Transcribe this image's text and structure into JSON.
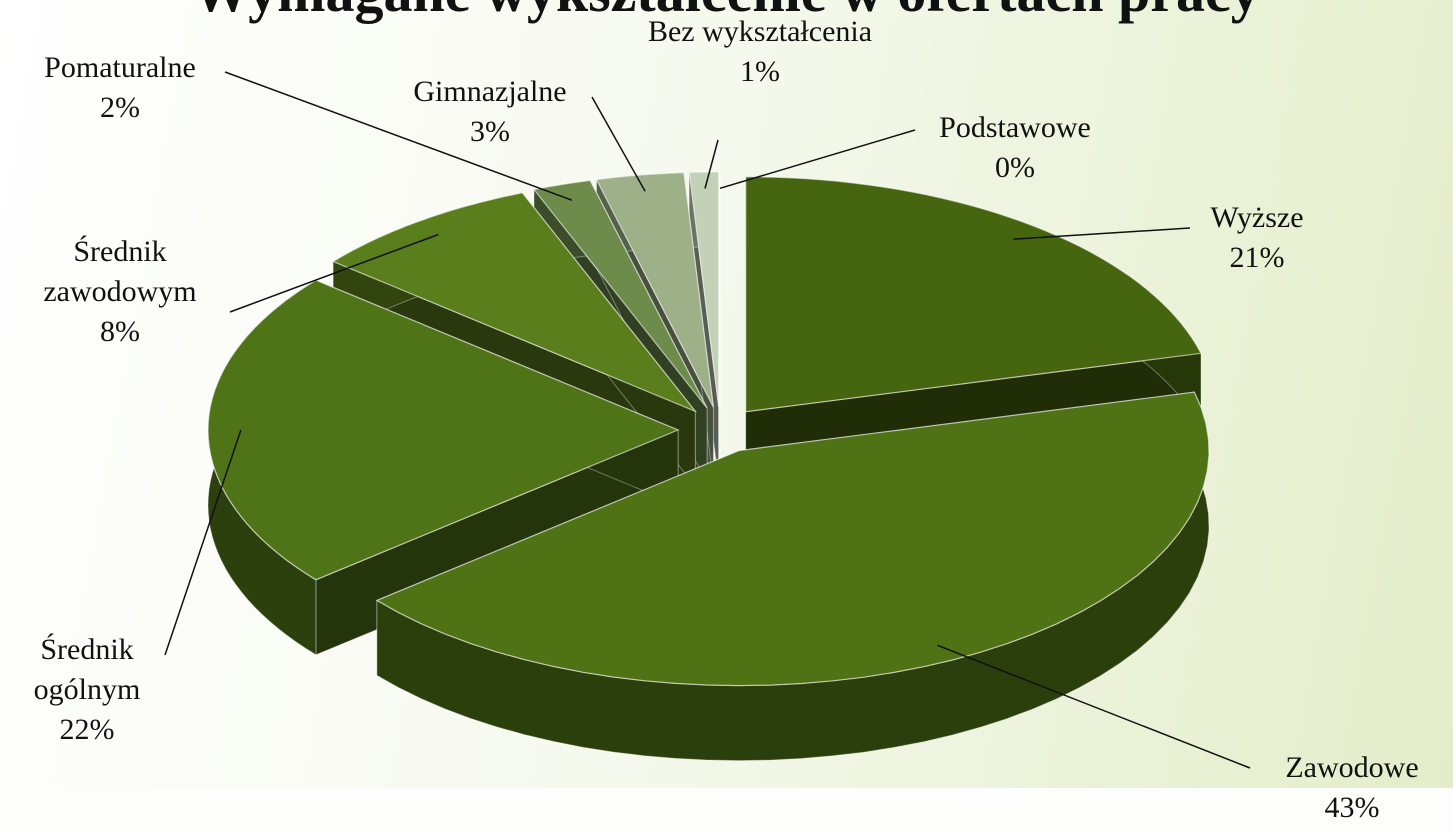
{
  "chart_data": {
    "type": "pie",
    "title": "Wymagane wykształcenie w ofertach pracy",
    "categories": [
      "Wyższe",
      "Zawodowe",
      "Średnik ogólnym",
      "Średnik zawodowym",
      "Pomaturalne",
      "Gimnazjalne",
      "Bez wykształcenia",
      "Podstawowe"
    ],
    "values": [
      21,
      43,
      22,
      8,
      2,
      3,
      1,
      0
    ],
    "value_labels": [
      "21%",
      "43%",
      "22%",
      "8%",
      "2%",
      "3%",
      "1%",
      "0%"
    ],
    "colors": [
      "#46650f",
      "#4f7215",
      "#4f7418",
      "#5a7e1c",
      "#6d8c4c",
      "#9db088",
      "#c3d1b6",
      "#e2eadb"
    ]
  }
}
